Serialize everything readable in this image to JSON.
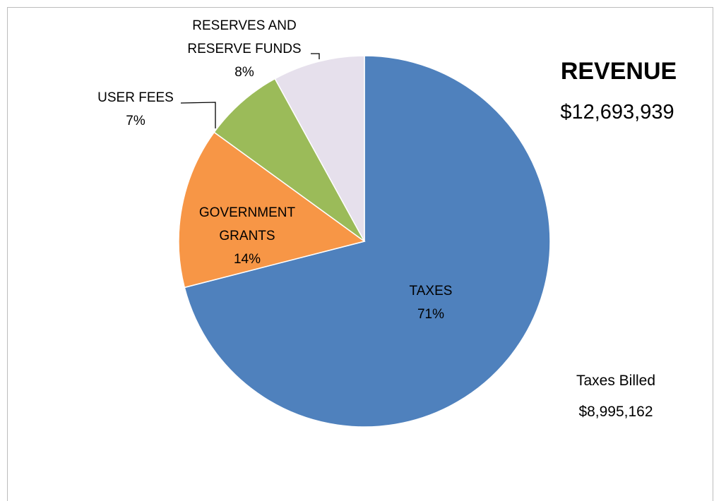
{
  "chart_data": {
    "type": "pie",
    "title": "REVENUE",
    "subtitle": "$12,693,939",
    "slices": [
      {
        "name": "TAXES",
        "percent_label": "71%",
        "value": 71,
        "color": "#4f81bd"
      },
      {
        "name": "GOVERNMENT GRANTS",
        "percent_label": "14%",
        "value": 14,
        "color": "#f79646"
      },
      {
        "name": "USER FEES",
        "percent_label": "7%",
        "value": 7,
        "color": "#9bbb59"
      },
      {
        "name": "RESERVES AND RESERVE FUNDS",
        "percent_label": "8%",
        "value": 8,
        "color": "#e6e0ec"
      }
    ],
    "annotation": {
      "label": "Taxes Billed",
      "value": "$8,995,162"
    }
  }
}
